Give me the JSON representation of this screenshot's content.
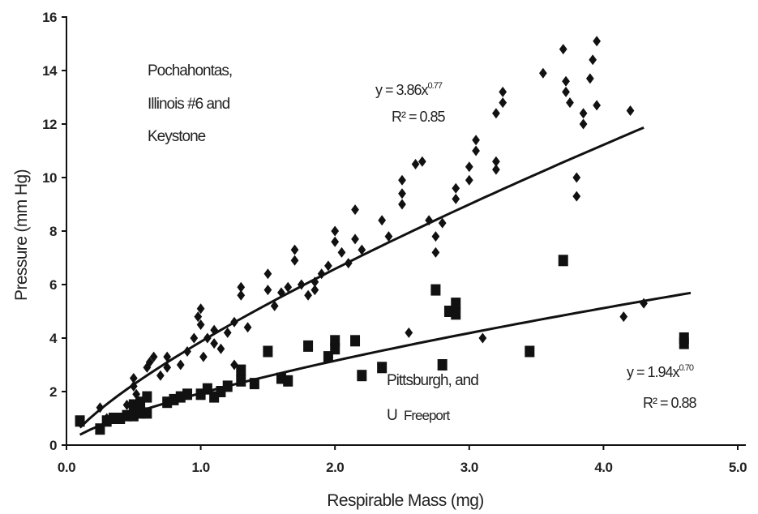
{
  "chart_data": {
    "type": "scatter",
    "title": "",
    "xlabel": "Respirable Mass (mg)",
    "ylabel": "Pressure (mm Hg)",
    "xlim": [
      0,
      5
    ],
    "ylim": [
      0,
      16
    ],
    "xticks": [
      "0.0",
      "1.0",
      "2.0",
      "3.0",
      "4.0",
      "5.0"
    ],
    "yticks": [
      "0",
      "2",
      "4",
      "6",
      "8",
      "10",
      "12",
      "14",
      "16"
    ],
    "grid": false,
    "legend": "none",
    "series": [
      {
        "marker": "diamond",
        "color": "#111111",
        "points": [
          [
            0.1,
            0.9
          ],
          [
            0.25,
            1.4
          ],
          [
            0.3,
            1.0
          ],
          [
            0.45,
            1.5
          ],
          [
            0.5,
            2.2
          ],
          [
            0.5,
            2.5
          ],
          [
            0.52,
            1.9
          ],
          [
            0.55,
            1.3
          ],
          [
            0.6,
            2.9
          ],
          [
            0.62,
            3.1
          ],
          [
            0.65,
            3.3
          ],
          [
            0.7,
            2.6
          ],
          [
            0.75,
            2.9
          ],
          [
            0.75,
            3.3
          ],
          [
            0.85,
            3.0
          ],
          [
            0.9,
            3.5
          ],
          [
            0.95,
            4.0
          ],
          [
            0.98,
            4.8
          ],
          [
            1.0,
            5.1
          ],
          [
            1.0,
            4.5
          ],
          [
            1.02,
            3.3
          ],
          [
            1.05,
            4.0
          ],
          [
            1.1,
            4.3
          ],
          [
            1.1,
            3.8
          ],
          [
            1.15,
            3.6
          ],
          [
            1.2,
            4.2
          ],
          [
            1.25,
            3.0
          ],
          [
            1.25,
            4.6
          ],
          [
            1.3,
            5.6
          ],
          [
            1.3,
            5.9
          ],
          [
            1.35,
            4.4
          ],
          [
            1.5,
            6.4
          ],
          [
            1.5,
            5.8
          ],
          [
            1.55,
            5.2
          ],
          [
            1.6,
            5.7
          ],
          [
            1.65,
            5.9
          ],
          [
            1.7,
            6.9
          ],
          [
            1.7,
            7.3
          ],
          [
            1.75,
            6.0
          ],
          [
            1.8,
            5.6
          ],
          [
            1.85,
            5.8
          ],
          [
            1.85,
            6.1
          ],
          [
            1.9,
            6.4
          ],
          [
            1.95,
            6.7
          ],
          [
            2.0,
            7.6
          ],
          [
            2.0,
            8.0
          ],
          [
            2.05,
            7.2
          ],
          [
            2.1,
            6.8
          ],
          [
            2.15,
            8.8
          ],
          [
            2.15,
            7.7
          ],
          [
            2.2,
            7.3
          ],
          [
            2.35,
            8.4
          ],
          [
            2.4,
            7.8
          ],
          [
            2.5,
            9.0
          ],
          [
            2.5,
            9.4
          ],
          [
            2.5,
            9.9
          ],
          [
            2.55,
            4.2
          ],
          [
            2.6,
            10.5
          ],
          [
            2.65,
            10.6
          ],
          [
            2.7,
            8.4
          ],
          [
            2.75,
            7.2
          ],
          [
            2.75,
            7.8
          ],
          [
            2.8,
            8.3
          ],
          [
            2.9,
            9.2
          ],
          [
            2.9,
            9.6
          ],
          [
            3.0,
            9.9
          ],
          [
            3.0,
            10.4
          ],
          [
            3.05,
            11.0
          ],
          [
            3.05,
            11.4
          ],
          [
            3.1,
            4.0
          ],
          [
            3.2,
            10.3
          ],
          [
            3.2,
            10.6
          ],
          [
            3.2,
            12.4
          ],
          [
            3.25,
            12.8
          ],
          [
            3.25,
            13.2
          ],
          [
            3.55,
            13.9
          ],
          [
            3.7,
            14.8
          ],
          [
            3.72,
            13.6
          ],
          [
            3.72,
            13.2
          ],
          [
            3.75,
            12.8
          ],
          [
            3.8,
            10.0
          ],
          [
            3.8,
            9.3
          ],
          [
            3.85,
            12.0
          ],
          [
            3.85,
            12.4
          ],
          [
            3.9,
            13.7
          ],
          [
            3.92,
            14.4
          ],
          [
            3.95,
            15.1
          ],
          [
            3.95,
            12.7
          ],
          [
            4.15,
            4.8
          ],
          [
            4.2,
            12.5
          ],
          [
            4.3,
            5.3
          ]
        ]
      },
      {
        "marker": "square",
        "color": "#111111",
        "points": [
          [
            0.1,
            0.9
          ],
          [
            0.25,
            0.6
          ],
          [
            0.3,
            0.9
          ],
          [
            0.35,
            1.0
          ],
          [
            0.4,
            1.0
          ],
          [
            0.45,
            1.1
          ],
          [
            0.5,
            1.1
          ],
          [
            0.5,
            1.5
          ],
          [
            0.55,
            1.2
          ],
          [
            0.55,
            1.6
          ],
          [
            0.6,
            1.2
          ],
          [
            0.6,
            1.8
          ],
          [
            0.75,
            1.6
          ],
          [
            0.8,
            1.7
          ],
          [
            0.85,
            1.8
          ],
          [
            0.9,
            1.9
          ],
          [
            1.0,
            1.9
          ],
          [
            1.05,
            2.1
          ],
          [
            1.1,
            1.8
          ],
          [
            1.15,
            2.0
          ],
          [
            1.2,
            2.2
          ],
          [
            1.3,
            2.4
          ],
          [
            1.3,
            2.8
          ],
          [
            1.4,
            2.3
          ],
          [
            1.5,
            3.5
          ],
          [
            1.6,
            2.5
          ],
          [
            1.65,
            2.4
          ],
          [
            1.8,
            3.7
          ],
          [
            1.95,
            3.3
          ],
          [
            2.0,
            3.9
          ],
          [
            2.0,
            3.6
          ],
          [
            2.15,
            3.9
          ],
          [
            2.2,
            2.6
          ],
          [
            2.35,
            2.9
          ],
          [
            2.75,
            5.8
          ],
          [
            2.8,
            3.0
          ],
          [
            2.85,
            5.0
          ],
          [
            2.9,
            5.3
          ],
          [
            2.9,
            4.9
          ],
          [
            3.45,
            3.5
          ],
          [
            3.7,
            6.9
          ],
          [
            4.6,
            4.0
          ],
          [
            4.6,
            3.8
          ]
        ]
      }
    ],
    "fits": [
      {
        "equation": "y = 3.86x",
        "exponent": "0.77",
        "r2": "R² = 0.85",
        "a": 3.86,
        "b": 0.77,
        "x_range": [
          0.1,
          4.3
        ]
      },
      {
        "equation": "y = 1.94x",
        "exponent": "0.70",
        "r2": "R² = 0.88",
        "a": 1.94,
        "b": 0.7,
        "x_range": [
          0.1,
          4.65
        ]
      }
    ],
    "annotations": {
      "group1": [
        "Pochahontas,",
        "Illinois #6 and",
        "Keystone"
      ],
      "group2_line1": "Pittsburgh, and",
      "group2_prefix": "U",
      "group2_suffix": "Freeport"
    }
  }
}
